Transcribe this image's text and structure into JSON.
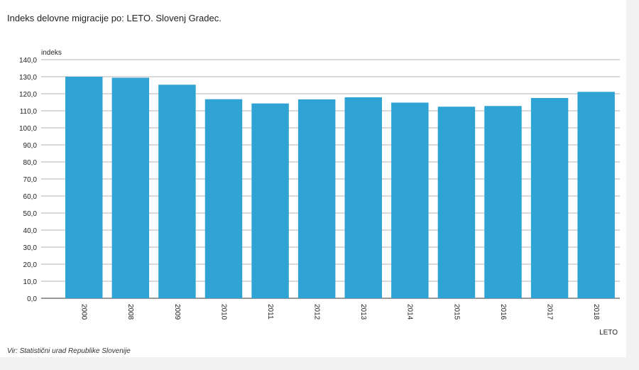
{
  "chart_data": {
    "type": "bar",
    "title": "Indeks delovne migracije po: LETO. Slovenj Gradec.",
    "ylabel": "indeks",
    "xlabel": "LETO",
    "categories": [
      "2000",
      "2008",
      "2009",
      "2010",
      "2011",
      "2012",
      "2013",
      "2014",
      "2015",
      "2016",
      "2017",
      "2018"
    ],
    "values": [
      130.0,
      129.4,
      125.3,
      116.8,
      114.3,
      116.7,
      117.9,
      114.8,
      112.4,
      112.8,
      117.5,
      121.1
    ],
    "ylim": [
      0,
      140
    ],
    "yticks": [
      "0,0",
      "10,0",
      "20,0",
      "30,0",
      "40,0",
      "50,0",
      "60,0",
      "70,0",
      "80,0",
      "90,0",
      "100,0",
      "110,0",
      "120,0",
      "130,0",
      "140,0"
    ],
    "grid": true,
    "bar_color": "#2ea3d4",
    "source": "Vir: Statistični urad Republike Slovenije"
  }
}
